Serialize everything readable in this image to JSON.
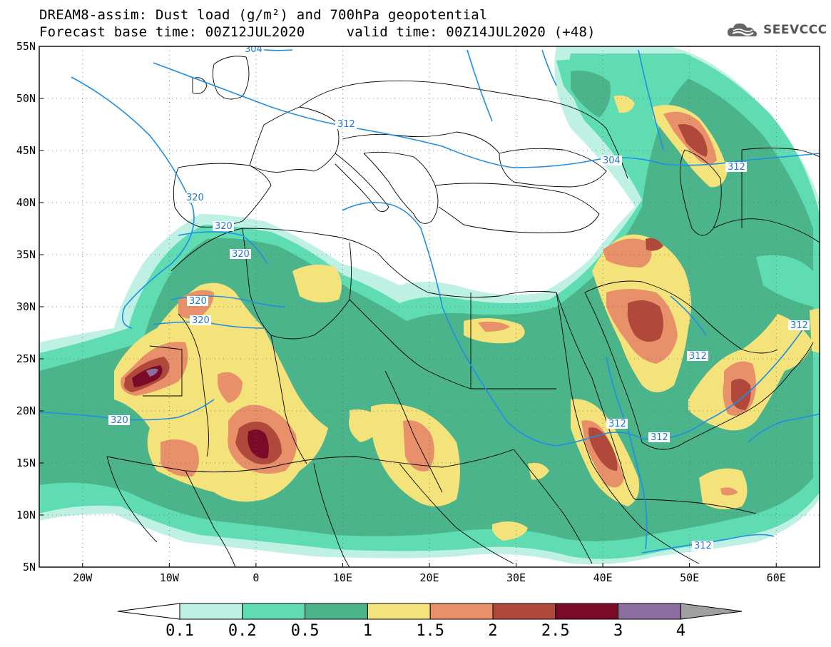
{
  "title_line1": "DREAM8-assim: Dust load (g/m²) and 700hPa geopotential",
  "title_line2": "Forecast base time: 00Z12JUL2020     valid time: 00Z14JUL2020 (+48)",
  "logo_text": "SEEVCCC",
  "logo_icon": "cloud-logo-icon",
  "lat_labels": [
    "55N",
    "50N",
    "45N",
    "40N",
    "35N",
    "30N",
    "25N",
    "20N",
    "15N",
    "10N",
    "5N"
  ],
  "lon_labels": [
    "20W",
    "10W",
    "0",
    "10E",
    "20E",
    "30E",
    "40E",
    "50E",
    "60E"
  ],
  "colorbar": {
    "levels": [
      "0.1",
      "0.2",
      "0.5",
      "1",
      "1.5",
      "2",
      "2.5",
      "3",
      "4"
    ],
    "colors": [
      "#ffffff",
      "#bff0e4",
      "#5fdcb2",
      "#4cb48a",
      "#f4e27a",
      "#e8906a",
      "#b0483c",
      "#7a0a28",
      "#8c6ea0",
      "#a0a0a0"
    ]
  },
  "contour_labels": [
    "304",
    "312",
    "312",
    "304",
    "312",
    "312",
    "320",
    "320",
    "320",
    "320",
    "320",
    "320",
    "312",
    "312",
    "312"
  ],
  "colors": {
    "c1": "#bff0e4",
    "c2": "#5fdcb2",
    "c3": "#4cb48a",
    "c4": "#f4e27a",
    "c5": "#e8906a",
    "c6": "#b0483c",
    "c7": "#7a0a28",
    "c8": "#8c6ea0",
    "geopotential": "#1e8ee8",
    "border": "#000000"
  }
}
